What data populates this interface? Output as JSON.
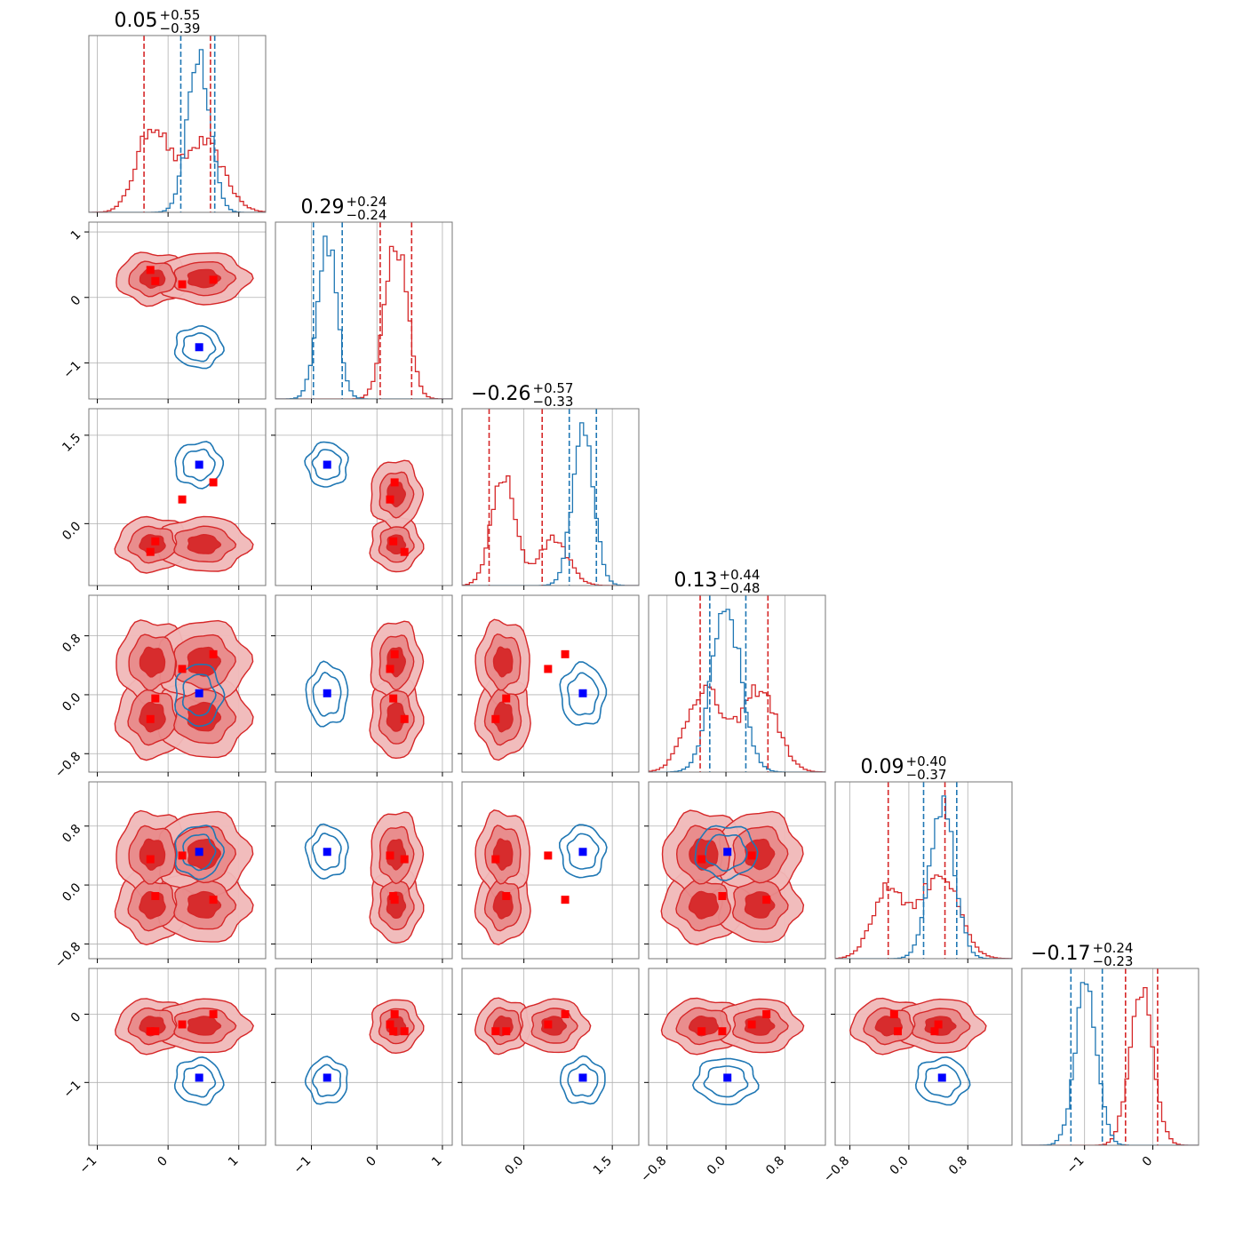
{
  "chart_data": {
    "type": "corner",
    "grid": true,
    "series": [
      {
        "color": "#d62728",
        "marker_color": "#ff0000",
        "filled": true
      },
      {
        "color": "#1f77b4",
        "marker_color": "#0000ff",
        "filled": false
      }
    ],
    "parameters": [
      {
        "title": {
          "value": "0.05",
          "plus": "+0.55",
          "minus": "−0.39"
        },
        "range": [
          -1.12,
          1.38
        ],
        "ticks": [
          -1,
          0,
          1
        ],
        "tick_labels": [
          "−1",
          "0",
          "1"
        ],
        "red": {
          "modes": [
            {
              "mean": -0.22,
              "sd": 0.22,
              "w": 0.55
            },
            {
              "mean": 0.5,
              "sd": 0.28,
              "w": 0.45
            }
          ],
          "quantiles": [
            -0.34,
            0.05,
            0.6
          ]
        },
        "blue": {
          "modes": [
            {
              "mean": 0.43,
              "sd": 0.16,
              "w": 1.0
            }
          ],
          "quantiles": [
            0.18,
            0.43,
            0.66
          ]
        },
        "red_points": [
          -0.25,
          -0.18,
          0.2,
          0.64
        ],
        "blue_point": 0.44
      },
      {
        "title": {
          "value": "0.29",
          "plus": "+0.24",
          "minus": "−0.24"
        },
        "range": [
          -1.55,
          1.15
        ],
        "ticks": [
          -1,
          0,
          1
        ],
        "tick_labels": [
          "−1",
          "0",
          "1"
        ],
        "red": {
          "modes": [
            {
              "mean": 0.29,
              "sd": 0.17,
              "w": 1.0
            }
          ],
          "quantiles": [
            0.05,
            0.29,
            0.53
          ]
        },
        "blue": {
          "modes": [
            {
              "mean": -0.76,
              "sd": 0.15,
              "w": 1.0
            }
          ],
          "quantiles": [
            -0.97,
            -0.76,
            -0.53
          ]
        },
        "red_points": [
          0.42,
          0.25,
          0.2,
          0.27
        ],
        "blue_point": -0.76
      },
      {
        "title": {
          "value": "−0.26",
          "plus": "+0.57",
          "minus": "−0.33"
        },
        "range": [
          -1.05,
          1.95
        ],
        "ticks": [
          0.0,
          1.5
        ],
        "tick_labels": [
          "0.0",
          "1.5"
        ],
        "red": {
          "modes": [
            {
              "mean": -0.35,
              "sd": 0.2,
              "w": 0.7
            },
            {
              "mean": 0.5,
              "sd": 0.25,
              "w": 0.3
            }
          ],
          "quantiles": [
            -0.59,
            -0.26,
            0.31
          ]
        },
        "blue": {
          "modes": [
            {
              "mean": 1.0,
              "sd": 0.18,
              "w": 1.0
            }
          ],
          "quantiles": [
            0.77,
            1.0,
            1.23
          ]
        },
        "red_points": [
          -0.48,
          -0.3,
          0.41,
          0.7
        ],
        "blue_point": 1.0
      },
      {
        "title": {
          "value": "0.13",
          "plus": "+0.44",
          "minus": "−0.48"
        },
        "range": [
          -1.05,
          1.35
        ],
        "ticks": [
          -0.8,
          0.0,
          0.8
        ],
        "tick_labels": [
          "−0.8",
          "0.0",
          "0.8"
        ],
        "red": {
          "modes": [
            {
              "mean": -0.3,
              "sd": 0.24,
              "w": 0.5
            },
            {
              "mean": 0.45,
              "sd": 0.24,
              "w": 0.5
            }
          ],
          "quantiles": [
            -0.35,
            0.13,
            0.57
          ]
        },
        "blue": {
          "modes": [
            {
              "mean": 0.0,
              "sd": 0.2,
              "w": 1.0
            }
          ],
          "quantiles": [
            -0.22,
            0.0,
            0.27
          ]
        },
        "red_points": [
          -0.33,
          -0.05,
          0.35,
          0.55
        ],
        "blue_point": 0.02
      },
      {
        "title": {
          "value": "0.09",
          "plus": "+0.40",
          "minus": "−0.37"
        },
        "range": [
          -1.0,
          1.4
        ],
        "ticks": [
          -0.8,
          0.0,
          0.8
        ],
        "tick_labels": [
          "−0.8",
          "0.0",
          "0.8"
        ],
        "red": {
          "modes": [
            {
              "mean": -0.27,
              "sd": 0.22,
              "w": 0.45
            },
            {
              "mean": 0.42,
              "sd": 0.25,
              "w": 0.55
            }
          ],
          "quantiles": [
            -0.28,
            0.09,
            0.49
          ]
        },
        "blue": {
          "modes": [
            {
              "mean": 0.45,
              "sd": 0.17,
              "w": 1.0
            }
          ],
          "quantiles": [
            0.2,
            0.45,
            0.65
          ]
        },
        "red_points": [
          0.35,
          -0.15,
          0.4,
          -0.2
        ],
        "blue_point": 0.45
      },
      {
        "title": {
          "value": "−0.17",
          "plus": "+0.24",
          "minus": "−0.23"
        },
        "range": [
          -1.92,
          0.67
        ],
        "ticks": [
          -1,
          0
        ],
        "tick_labels": [
          "−1",
          "0"
        ],
        "red": {
          "modes": [
            {
              "mean": -0.17,
              "sd": 0.17,
              "w": 1.0
            }
          ],
          "quantiles": [
            -0.4,
            -0.17,
            0.07
          ]
        },
        "blue": {
          "modes": [
            {
              "mean": -0.98,
              "sd": 0.16,
              "w": 1.0
            }
          ],
          "quantiles": [
            -1.2,
            -0.98,
            -0.74
          ]
        },
        "red_points": [
          -0.25,
          -0.25,
          -0.15,
          0.0
        ],
        "blue_point": -0.93
      }
    ]
  }
}
